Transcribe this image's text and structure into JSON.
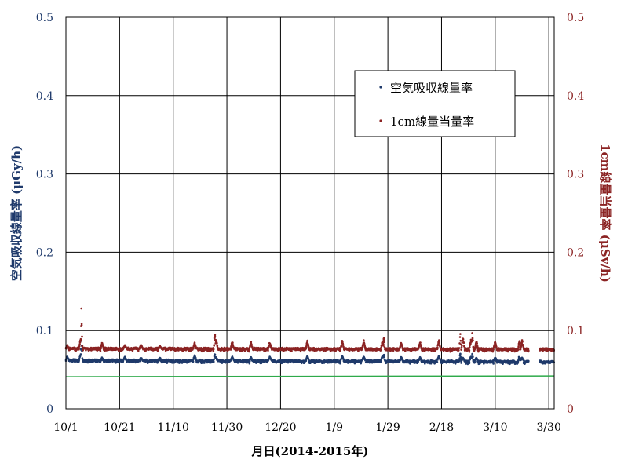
{
  "chart_data": {
    "type": "scatter",
    "xlabel": "月日(2014-2015年)",
    "ylabel_left": "空気吸収線量率 (μGy/h)",
    "ylabel_right": "1cm線量当量率 (μSv/h)",
    "ylim_left": [
      0,
      0.5
    ],
    "ylim_right": [
      0,
      0.5
    ],
    "y_ticks_left": [
      "0",
      "0.1",
      "0.2",
      "0.3",
      "0.4",
      "0.5"
    ],
    "y_ticks_right": [
      "0",
      "0.1",
      "0.2",
      "0.3",
      "0.4",
      "0.5"
    ],
    "x_tick_labels": [
      "10/1",
      "10/21",
      "11/10",
      "11/30",
      "12/20",
      "1/9",
      "1/29",
      "2/18",
      "3/10",
      "3/30"
    ],
    "x_range_days": [
      0,
      182
    ],
    "grid": true,
    "legend_position": "top-right",
    "series": [
      {
        "name": "空気吸収線量率",
        "color": "#1f3a6b",
        "baseline": 0.062,
        "baseline_end": 0.06,
        "peaks": [
          [
            0.5,
            0.067
          ],
          [
            5.5,
            0.073
          ],
          [
            13.5,
            0.066
          ],
          [
            22,
            0.067
          ],
          [
            28,
            0.066
          ],
          [
            35,
            0.066
          ],
          [
            48,
            0.07
          ],
          [
            56,
            0.067
          ],
          [
            62,
            0.068
          ],
          [
            69,
            0.067
          ],
          [
            76,
            0.067
          ],
          [
            90,
            0.068
          ],
          [
            103,
            0.068
          ],
          [
            111,
            0.068
          ],
          [
            118,
            0.068
          ],
          [
            125,
            0.067
          ],
          [
            132,
            0.066
          ],
          [
            139,
            0.068
          ],
          [
            148,
            0.066
          ],
          [
            151,
            0.068
          ],
          [
            153,
            0.066
          ],
          [
            160,
            0.066
          ],
          [
            170,
            0.066
          ]
        ],
        "spikes": [
          [
            5.8,
            0.091
          ],
          [
            55.5,
            0.074
          ],
          [
            118.5,
            0.072
          ],
          [
            147,
            0.072
          ],
          [
            151.5,
            0.072
          ],
          [
            169,
            0.07
          ]
        ]
      },
      {
        "name": "1cm線量当量率",
        "color": "#8b2323",
        "baseline": 0.077,
        "baseline_end": 0.076,
        "peaks": [
          [
            0.5,
            0.082
          ],
          [
            5.5,
            0.094
          ],
          [
            13.5,
            0.086
          ],
          [
            22,
            0.082
          ],
          [
            28,
            0.083
          ],
          [
            35,
            0.081
          ],
          [
            48,
            0.085
          ],
          [
            56,
            0.091
          ],
          [
            62,
            0.088
          ],
          [
            69,
            0.086
          ],
          [
            76,
            0.087
          ],
          [
            90,
            0.088
          ],
          [
            103,
            0.088
          ],
          [
            111,
            0.088
          ],
          [
            118,
            0.088
          ],
          [
            125,
            0.086
          ],
          [
            132,
            0.087
          ],
          [
            139,
            0.09
          ],
          [
            148,
            0.093
          ],
          [
            151,
            0.092
          ],
          [
            153,
            0.088
          ],
          [
            160,
            0.088
          ],
          [
            170,
            0.089
          ]
        ],
        "spikes": [
          [
            5.8,
            0.137
          ],
          [
            55.5,
            0.11
          ],
          [
            118.5,
            0.096
          ],
          [
            147,
            0.1
          ],
          [
            151.5,
            0.104
          ],
          [
            169,
            0.093
          ]
        ]
      },
      {
        "color": "#2eaa4a",
        "line": [
          [
            0,
            0.041
          ],
          [
            182,
            0.042
          ]
        ]
      }
    ]
  }
}
